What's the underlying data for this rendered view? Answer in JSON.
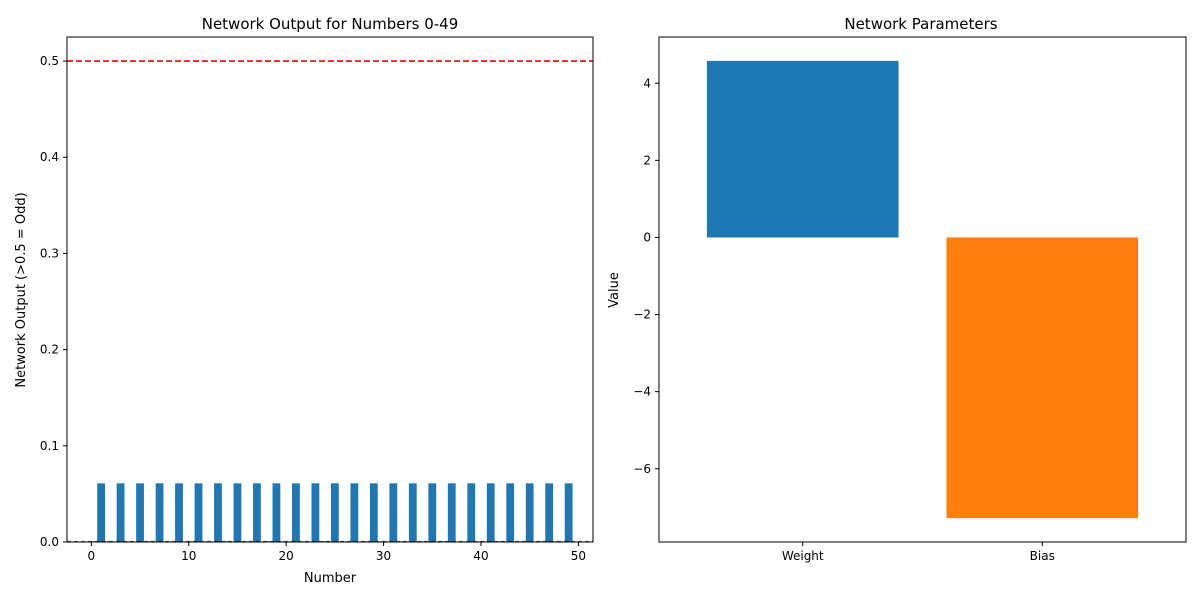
{
  "colors": {
    "blue": "#1f77b4",
    "orange": "#ff7f0e",
    "threshold": "#ff0000",
    "axis": "#000000"
  },
  "chart_data": [
    {
      "type": "bar",
      "title": "Network Output for Numbers 0-49",
      "xlabel": "Number",
      "ylabel": "Network Output (>0.5 = Odd)",
      "xlim": [
        -2.5,
        51.5
      ],
      "ylim": [
        0,
        0.525
      ],
      "xticks": [
        0,
        10,
        20,
        30,
        40,
        50
      ],
      "yticks": [
        0.0,
        0.1,
        0.2,
        0.3,
        0.4,
        0.5
      ],
      "ytick_labels": [
        "0.0",
        "0.1",
        "0.2",
        "0.3",
        "0.4",
        "0.5"
      ],
      "x": [
        0,
        1,
        2,
        3,
        4,
        5,
        6,
        7,
        8,
        9,
        10,
        11,
        12,
        13,
        14,
        15,
        16,
        17,
        18,
        19,
        20,
        21,
        22,
        23,
        24,
        25,
        26,
        27,
        28,
        29,
        30,
        31,
        32,
        33,
        34,
        35,
        36,
        37,
        38,
        39,
        40,
        41,
        42,
        43,
        44,
        45,
        46,
        47,
        48,
        49
      ],
      "values": [
        0.0007,
        0.061,
        0.0007,
        0.061,
        0.0007,
        0.061,
        0.0007,
        0.061,
        0.0007,
        0.061,
        0.0007,
        0.061,
        0.0007,
        0.061,
        0.0007,
        0.061,
        0.0007,
        0.061,
        0.0007,
        0.061,
        0.0007,
        0.061,
        0.0007,
        0.061,
        0.0007,
        0.061,
        0.0007,
        0.061,
        0.0007,
        0.061,
        0.0007,
        0.061,
        0.0007,
        0.061,
        0.0007,
        0.061,
        0.0007,
        0.061,
        0.0007,
        0.061,
        0.0007,
        0.061,
        0.0007,
        0.061,
        0.0007,
        0.061,
        0.0007,
        0.061,
        0.0007,
        0.061
      ],
      "bar_width": 0.8,
      "threshold": 0.5,
      "threshold_style": "dashed",
      "grid": false
    },
    {
      "type": "bar",
      "title": "Network Parameters",
      "xlabel": "",
      "ylabel": "Value",
      "categories": [
        "Weight",
        "Bias"
      ],
      "values": [
        4.58,
        -7.28
      ],
      "bar_colors": [
        "#1f77b4",
        "#ff7f0e"
      ],
      "ylim": [
        -7.9,
        5.2
      ],
      "yticks": [
        -6,
        -4,
        -2,
        0,
        2,
        4
      ],
      "ytick_labels": [
        "−6",
        "−4",
        "−2",
        "0",
        "2",
        "4"
      ],
      "grid": false
    }
  ]
}
